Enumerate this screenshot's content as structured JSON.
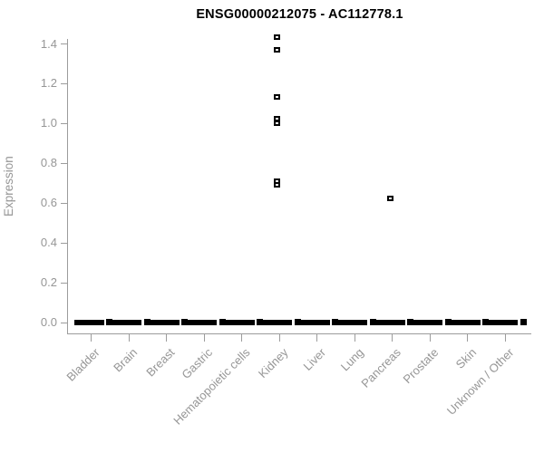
{
  "chart_data": {
    "type": "boxplot",
    "title": "ENSG00000212075 - AC112778.1",
    "ylabel": "Expression",
    "xlabel": "",
    "ylim": [
      0.0,
      1.4
    ],
    "yticks": [
      0.0,
      0.2,
      0.4,
      0.6,
      0.8,
      1.0,
      1.2,
      1.4
    ],
    "grid": false,
    "legend_position": "none",
    "series": [
      {
        "category": "Bladder",
        "box": {
          "min": 0,
          "q1": 0,
          "median": 0,
          "q3": 0,
          "max": 0
        },
        "outliers": []
      },
      {
        "category": "Brain",
        "box": {
          "min": 0,
          "q1": 0,
          "median": 0,
          "q3": 0,
          "max": 0
        },
        "outliers": []
      },
      {
        "category": "Breast",
        "box": {
          "min": 0,
          "q1": 0,
          "median": 0,
          "q3": 0,
          "max": 0
        },
        "outliers": []
      },
      {
        "category": "Gastric",
        "box": {
          "min": 0,
          "q1": 0,
          "median": 0,
          "q3": 0,
          "max": 0
        },
        "outliers": []
      },
      {
        "category": "Hematopoietic cells",
        "box": {
          "min": 0,
          "q1": 0,
          "median": 0,
          "q3": 0,
          "max": 0
        },
        "outliers": []
      },
      {
        "category": "Kidney",
        "box": {
          "min": 0,
          "q1": 0,
          "median": 0,
          "q3": 0,
          "max": 0
        },
        "outliers": [
          1.43,
          1.37,
          1.13,
          1.02,
          1.0,
          0.71,
          0.69
        ]
      },
      {
        "category": "Liver",
        "box": {
          "min": 0,
          "q1": 0,
          "median": 0,
          "q3": 0,
          "max": 0
        },
        "outliers": []
      },
      {
        "category": "Lung",
        "box": {
          "min": 0,
          "q1": 0,
          "median": 0,
          "q3": 0,
          "max": 0
        },
        "outliers": []
      },
      {
        "category": "Pancreas",
        "box": {
          "min": 0,
          "q1": 0,
          "median": 0,
          "q3": 0,
          "max": 0
        },
        "outliers": [
          0.62
        ]
      },
      {
        "category": "Prostate",
        "box": {
          "min": 0,
          "q1": 0,
          "median": 0,
          "q3": 0,
          "max": 0
        },
        "outliers": []
      },
      {
        "category": "Skin",
        "box": {
          "min": 0,
          "q1": 0,
          "median": 0,
          "q3": 0,
          "max": 0
        },
        "outliers": []
      },
      {
        "category": "Unknown / Other",
        "box": {
          "min": 0,
          "q1": 0,
          "median": 0,
          "q3": 0,
          "max": 0
        },
        "outliers": []
      }
    ]
  },
  "colors": {
    "background": "#ffffff",
    "title_text": "#000000",
    "axis_text": "#969696",
    "axis_line": "#9c9c9c",
    "box_fill": "#000000",
    "outlier_stroke": "#000000"
  }
}
